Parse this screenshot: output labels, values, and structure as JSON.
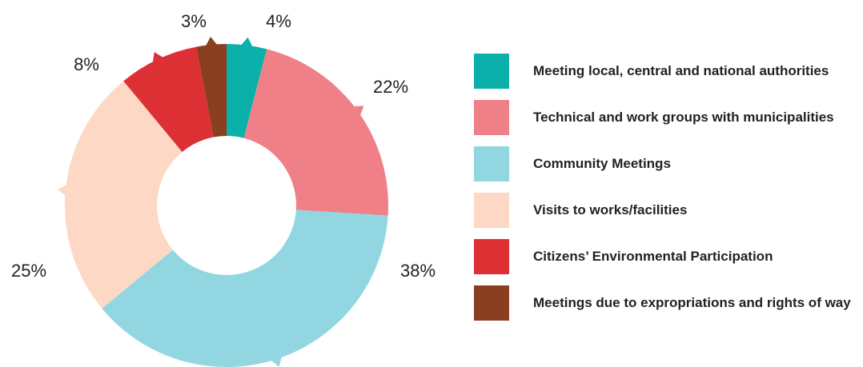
{
  "chart_data": {
    "type": "donut",
    "categories": [
      "Meeting local, central and national authorities",
      "Technical and work groups with municipalities",
      "Community Meetings",
      "Visits to works/facilities",
      "Citizens’ Environmental Participation",
      "Meetings due to expropriations and rights of way"
    ],
    "values": [
      4,
      22,
      38,
      25,
      8,
      3
    ],
    "value_labels": [
      "4%",
      "22%",
      "38%",
      "25%",
      "8%",
      "3%"
    ],
    "colors": [
      "#0bb0ab",
      "#f08087",
      "#92d6e2",
      "#fdd8c5",
      "#dc3035",
      "#8b3f21"
    ]
  }
}
